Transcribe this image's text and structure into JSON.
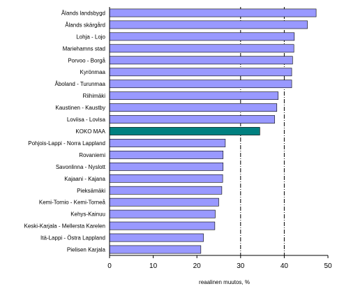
{
  "chart_data": {
    "type": "bar",
    "orientation": "horizontal",
    "categories": [
      "Ålands landsbygd",
      "Ålands skärgård",
      "Lohja - Lojo",
      "Mariehamns stad",
      "Porvoo - Borgå",
      "Kyrönmaa",
      "Åboland - Turunmaa",
      "Riihimäki",
      "Kaustinen - Kaustby",
      "Loviisa - Lovisa",
      "KOKO MAA",
      "Pohjois-Lappi - Norra Lappland",
      "Rovaniemi",
      "Savonlinna - Nyslott",
      "Kajaani - Kajana",
      "Pieksämäki",
      "Kemi-Tornio - Kemi-Torneå",
      "Kehys-Kainuu",
      "Keski-Karjala - Mellersta Karelen",
      "Itä-Lappi - Östra Lappland",
      "Pielisen Karjala"
    ],
    "values": [
      47.3,
      45.3,
      42.3,
      42.2,
      41.9,
      41.7,
      41.7,
      38.6,
      38.3,
      37.8,
      34.4,
      26.5,
      26.0,
      26.0,
      25.9,
      25.7,
      25.0,
      24.2,
      24.1,
      21.5,
      20.9
    ],
    "highlight_category": "KOKO MAA",
    "xlabel": "reaalinen muutos, %",
    "ylabel": "",
    "title": "",
    "xlim": [
      0,
      50
    ],
    "xticks": [
      "0",
      "10",
      "20",
      "30",
      "40",
      "50"
    ],
    "reference_lines": [
      30,
      40
    ],
    "grid": false,
    "legend": "none",
    "colors": {
      "bar": "#9999ff",
      "highlight": "#008080",
      "bar_border": "#000000",
      "reference_line": "#000000"
    }
  }
}
